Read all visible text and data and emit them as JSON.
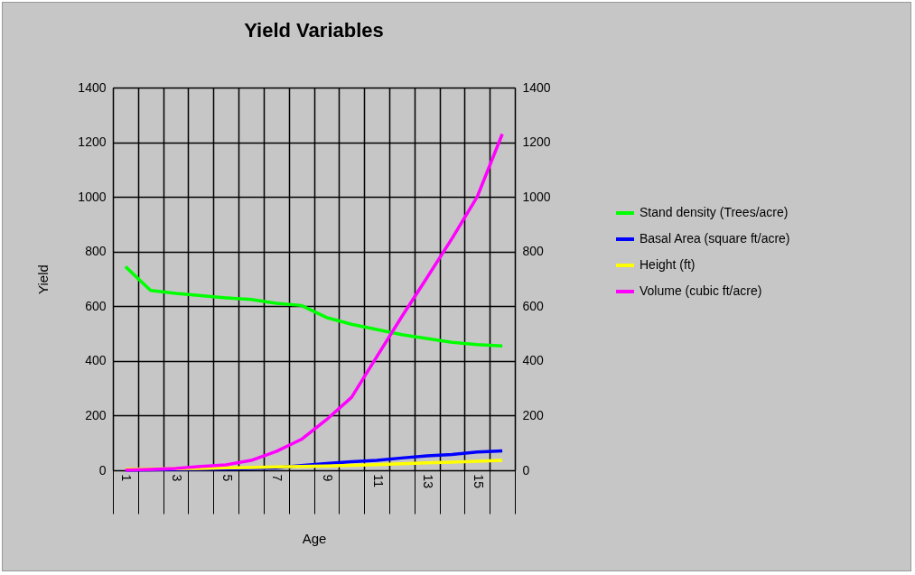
{
  "chart_data": {
    "type": "line",
    "title": "Yield Variables",
    "xlabel": "Age",
    "ylabel": "Yield",
    "categories": [
      "1",
      null,
      "3",
      null,
      "5",
      null,
      "7",
      null,
      "9",
      null,
      "11",
      null,
      "13",
      null,
      "15",
      null
    ],
    "series": [
      {
        "name": "Stand density (Trees/acre)",
        "color": "#00ff00",
        "values": [
          745,
          658,
          647,
          639,
          631,
          625,
          611,
          603,
          559,
          534,
          515,
          496,
          482,
          468,
          460,
          455
        ]
      },
      {
        "name": "Basal Area (square ft/acre)",
        "color": "#0000ff",
        "values": [
          1,
          2,
          3,
          4,
          5,
          7,
          9,
          17,
          25,
          31,
          36,
          45,
          53,
          58,
          67,
          71
        ]
      },
      {
        "name": "Height (ft)",
        "color": "#ffff00",
        "values": [
          4,
          5,
          6,
          7,
          9,
          10,
          12,
          14,
          16,
          18,
          21,
          24,
          27,
          30,
          33,
          36
        ]
      },
      {
        "name": "Volume (cubic ft/acre)",
        "color": "#ff00ff",
        "values": [
          1,
          3,
          7,
          14,
          20,
          36,
          69,
          113,
          185,
          267,
          415,
          562,
          704,
          848,
          1000,
          1230
        ]
      }
    ],
    "ylim": [
      0,
      1400
    ],
    "yticks": [
      0,
      200,
      400,
      600,
      800,
      1000,
      1200,
      1400
    ],
    "y2lim": [
      0,
      1400
    ],
    "y2ticks": [
      0,
      200,
      400,
      600,
      800,
      1000,
      1200,
      1400
    ],
    "grid": true,
    "legend": "right"
  }
}
